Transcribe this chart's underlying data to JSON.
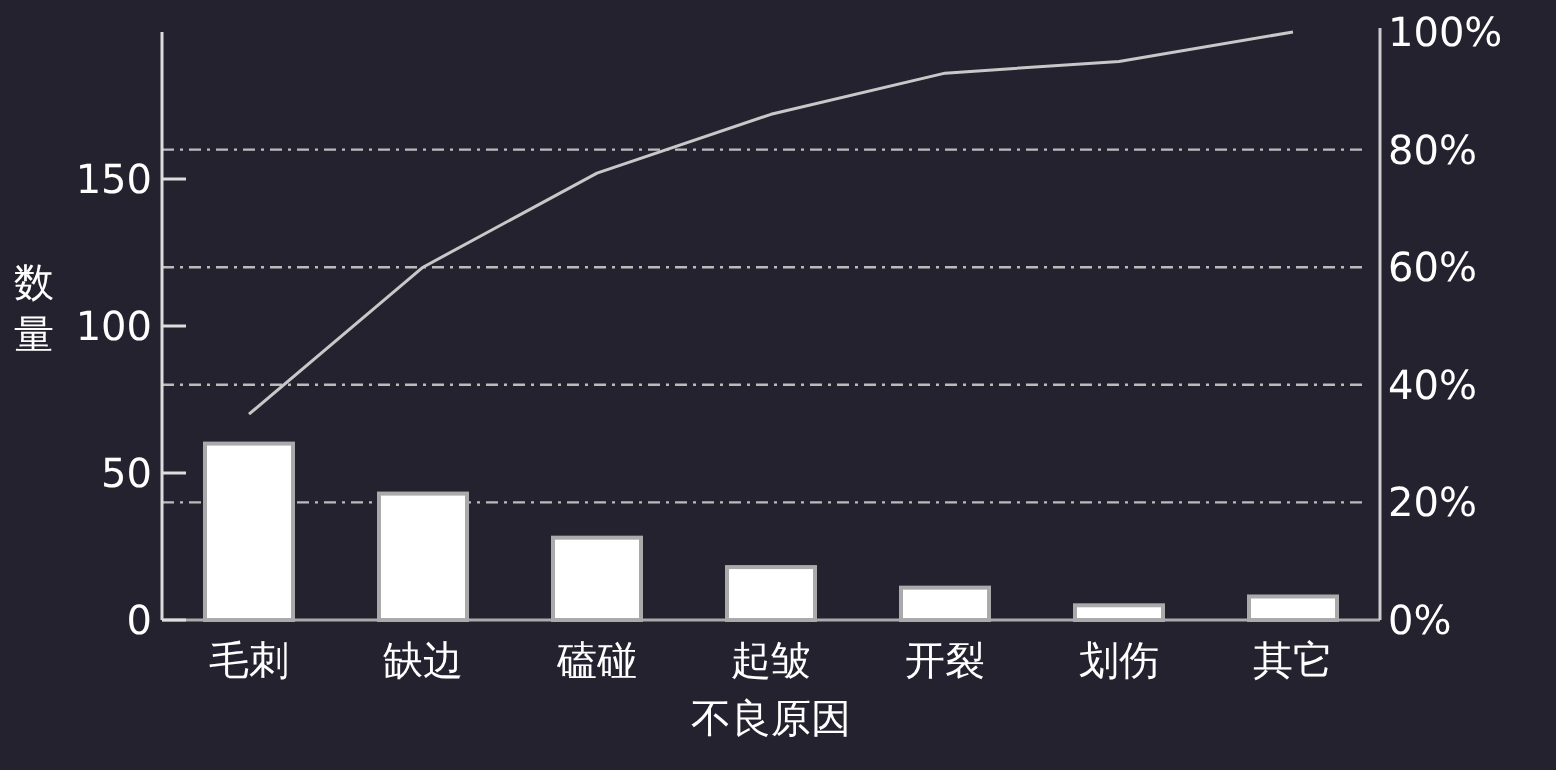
{
  "chart_data": {
    "type": "bar",
    "xlabel": "不良原因",
    "ylabel": "数量",
    "categories": [
      "毛刺",
      "缺边",
      "磕碰",
      "起皱",
      "开裂",
      "划伤",
      "其它"
    ],
    "series": [
      {
        "color": "#ffffff",
        "values": [
          60,
          43,
          28,
          18,
          11,
          5,
          8
        ]
      },
      {
        "type": "line",
        "axis": "y2",
        "color": "#c8c8c8",
        "values": [
          35,
          60,
          76,
          86,
          93,
          95,
          100
        ]
      }
    ],
    "ylim": [
      0,
      200
    ],
    "yticks": [
      0,
      50,
      100,
      150
    ],
    "y2lim": [
      0,
      100
    ],
    "y2ticks": [
      {
        "value": 0,
        "label": "0%"
      },
      {
        "value": 20,
        "label": "20%"
      },
      {
        "value": 40,
        "label": "40%"
      },
      {
        "value": 60,
        "label": "60%"
      },
      {
        "value": 80,
        "label": "80%"
      },
      {
        "value": 100,
        "label": "100%"
      }
    ],
    "grid": "y2",
    "marker": "none"
  }
}
